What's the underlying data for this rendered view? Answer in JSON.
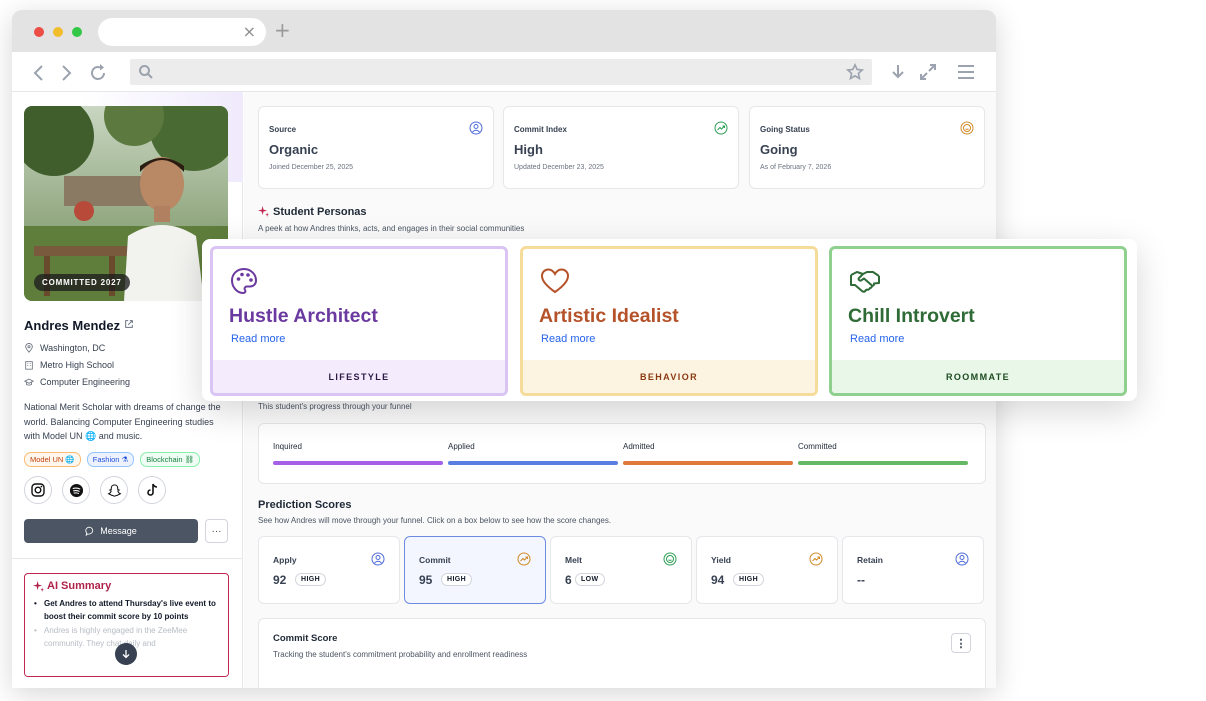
{
  "colors": {
    "accent_purple": "#6b3aa0",
    "accent_orange": "#b5522a",
    "accent_green": "#2f6b36",
    "link_blue": "#2563eb",
    "ai_red": "#c0264f"
  },
  "browser": {
    "close_tab": "×",
    "new_tab": "+"
  },
  "profile": {
    "badge": "COMMITTED 2027",
    "name": "Andres Mendez",
    "location": "Washington, DC",
    "school": "Metro High School",
    "major": "Computer Engineering",
    "bio": "National Merit Scholar with dreams of change the world. Balancing Computer Engineering studies with Model UN 🌐 and music.",
    "tags": [
      {
        "label": "Model UN 🌐",
        "color": "#c2410c",
        "bg": "#fff7ed",
        "border": "#fdba74"
      },
      {
        "label": "Fashion ⚗",
        "color": "#1d4ed8",
        "bg": "#eef2ff",
        "border": "#93c5fd"
      },
      {
        "label": "Blockchain ⛓",
        "color": "#15803d",
        "bg": "#f0fdf4",
        "border": "#86efac"
      }
    ],
    "socials": [
      "instagram-icon",
      "spotify-icon",
      "snapchat-icon",
      "tiktok-icon"
    ],
    "message_label": "Message",
    "more_label": "···"
  },
  "ai_summary": {
    "title": "AI Summary",
    "items": [
      "Get Andres to attend Thursday's live event to boost their commit score by 10 points",
      "Andres is highly engaged in the ZeeMee community. They chat daily and"
    ]
  },
  "stats": [
    {
      "label": "Source",
      "value": "Organic",
      "sub": "Joined December 25, 2025",
      "icon": "user-circle-icon",
      "color": "#4f6bd8"
    },
    {
      "label": "Commit Index",
      "value": "High",
      "sub": "Updated December 23, 2025",
      "icon": "trend-up-icon",
      "color": "#2f9e55"
    },
    {
      "label": "Going Status",
      "value": "Going",
      "sub": "As of February 7, 2026",
      "icon": "smile-icon",
      "color": "#d08a2a"
    }
  ],
  "personas": {
    "title": "Student Personas",
    "subtitle": "A peek at how Andres thinks, acts, and engages in their social communities",
    "cards": [
      {
        "name": "Hustle Architect",
        "link": "Read more",
        "category": "LIFESTYLE",
        "icon": "palette-icon"
      },
      {
        "name": "Artistic Idealist",
        "link": "Read more",
        "category": "BEHAVIOR",
        "icon": "heart-icon"
      },
      {
        "name": "Chill Introvert",
        "link": "Read more",
        "category": "ROOMMATE",
        "icon": "handshake-icon"
      }
    ]
  },
  "funnel": {
    "subtitle": "This student's progress through your funnel",
    "stages": [
      {
        "label": "Inquired",
        "color": "#a461e8"
      },
      {
        "label": "Applied",
        "color": "#5a7fe0"
      },
      {
        "label": "Admitted",
        "color": "#e07a3a"
      },
      {
        "label": "Committed",
        "color": "#66b866"
      }
    ]
  },
  "predictions": {
    "title": "Prediction Scores",
    "subtitle": "See how Andres will move through your funnel. Click on a box below to see how the score changes.",
    "cards": [
      {
        "label": "Apply",
        "value": "92",
        "level": "HIGH",
        "icon": "user-circle-icon",
        "color": "#4f6bd8"
      },
      {
        "label": "Commit",
        "value": "95",
        "level": "HIGH",
        "icon": "trend-up-icon",
        "color": "#d08a2a"
      },
      {
        "label": "Melt",
        "value": "6",
        "level": "LOW",
        "icon": "smile-icon",
        "color": "#2f9e55"
      },
      {
        "label": "Yield",
        "value": "94",
        "level": "HIGH",
        "icon": "trend-up-icon",
        "color": "#d08a2a"
      },
      {
        "label": "Retain",
        "value": "--",
        "level": "",
        "icon": "user-circle-icon",
        "color": "#4f6bd8"
      }
    ]
  },
  "commit_score": {
    "title": "Commit Score",
    "subtitle": "Tracking the student's commitment probability and enrollment readiness",
    "menu": "⋮"
  }
}
